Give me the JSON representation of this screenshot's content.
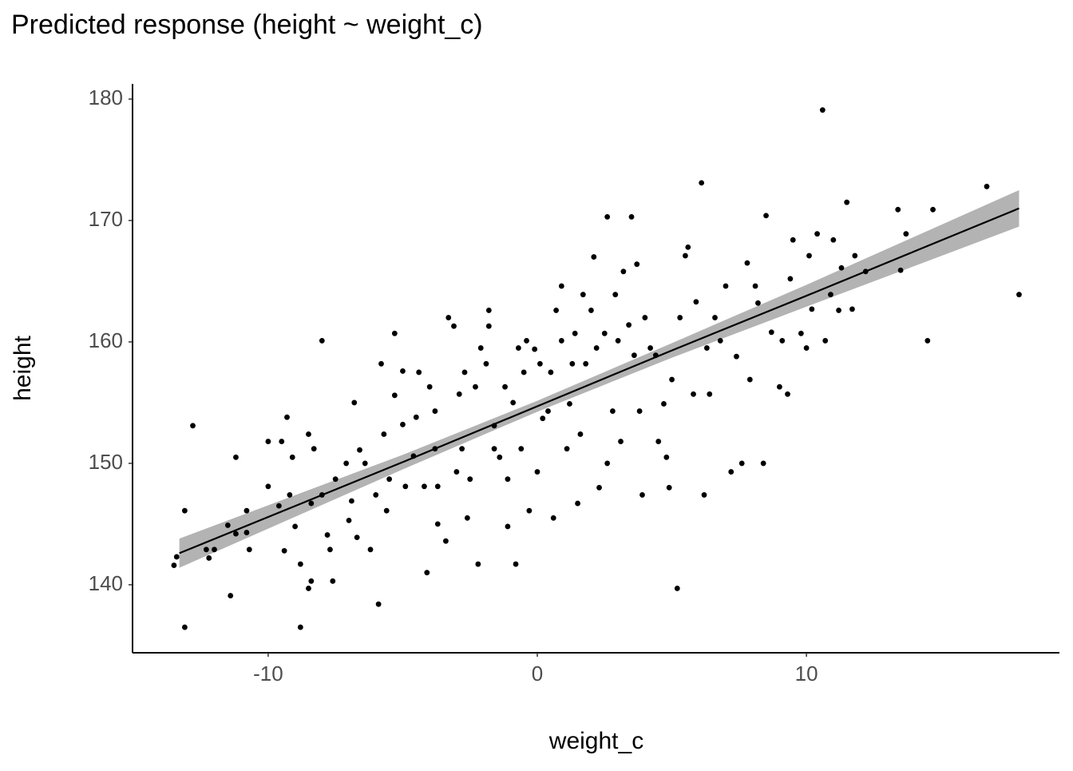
{
  "chart_data": {
    "type": "scatter",
    "title": "Predicted response (height ~ weight_c)",
    "xlabel": "weight_c",
    "ylabel": "height",
    "xlim": [
      -15.04,
      19.4
    ],
    "ylim": [
      134.4,
      181.25
    ],
    "xticks": [
      -10,
      0,
      10
    ],
    "yticks": [
      140,
      150,
      160,
      170,
      180
    ],
    "grid": false,
    "point_color": "#000000",
    "x": [
      -13.5,
      -13.4,
      -13.1,
      -13.1,
      -12.8,
      -12.3,
      -12.2,
      -12.0,
      -11.5,
      -11.4,
      -11.2,
      -11.2,
      -10.8,
      -10.8,
      -10.7,
      -10.0,
      -10.0,
      -9.5,
      -9.3,
      -9.6,
      -9.4,
      -9.2,
      -9.1,
      -9.0,
      -8.8,
      -8.8,
      -8.5,
      -8.5,
      -8.4,
      -8.4,
      -8.3,
      -8.0,
      -8.0,
      -7.8,
      -7.7,
      -7.6,
      -7.5,
      -7.1,
      -7.0,
      -6.9,
      -6.8,
      -6.7,
      -6.6,
      -6.4,
      -6.2,
      -6.0,
      -5.9,
      -5.8,
      -5.7,
      -5.6,
      -5.5,
      -5.3,
      -5.3,
      -5.0,
      -5.0,
      -4.9,
      -4.6,
      -4.5,
      -4.4,
      -4.2,
      -4.1,
      -4.0,
      -3.8,
      -3.8,
      -3.7,
      -3.7,
      -3.4,
      -3.3,
      -3.1,
      -3.0,
      -2.9,
      -2.8,
      -2.7,
      -2.6,
      -2.5,
      -2.3,
      -2.2,
      -2.1,
      -1.9,
      -1.8,
      -1.8,
      -1.6,
      -1.6,
      -1.4,
      -1.2,
      -1.1,
      -1.1,
      -0.9,
      -0.8,
      -0.7,
      -0.6,
      -0.5,
      -0.4,
      -0.3,
      -0.1,
      0.0,
      0.1,
      0.2,
      0.4,
      0.5,
      0.6,
      0.7,
      0.9,
      0.9,
      1.1,
      1.2,
      1.3,
      1.4,
      1.5,
      1.6,
      1.7,
      1.8,
      2.0,
      2.1,
      2.2,
      2.3,
      2.5,
      2.6,
      2.6,
      2.8,
      2.9,
      3.0,
      3.1,
      3.2,
      3.4,
      3.5,
      3.6,
      3.7,
      3.8,
      3.9,
      4.0,
      4.2,
      4.4,
      4.5,
      4.7,
      4.8,
      4.9,
      5.0,
      5.2,
      5.3,
      5.5,
      5.6,
      5.8,
      5.9,
      6.1,
      6.2,
      6.3,
      6.4,
      6.6,
      6.8,
      7.0,
      7.2,
      7.4,
      7.6,
      7.8,
      7.9,
      8.1,
      8.2,
      8.4,
      8.5,
      8.7,
      9.0,
      9.1,
      9.3,
      9.4,
      9.5,
      9.8,
      10.0,
      10.1,
      10.2,
      10.4,
      10.6,
      10.7,
      10.9,
      11.0,
      11.2,
      11.3,
      11.5,
      11.7,
      11.8,
      12.2,
      13.4,
      13.5,
      13.7,
      14.5,
      14.7,
      16.7,
      17.9
    ],
    "y": [
      141.6,
      142.3,
      136.5,
      146.1,
      153.1,
      142.9,
      142.2,
      142.9,
      144.9,
      139.1,
      150.5,
      144.2,
      146.1,
      144.3,
      142.9,
      151.8,
      148.1,
      151.8,
      153.8,
      146.5,
      142.8,
      147.4,
      150.5,
      144.8,
      141.7,
      136.5,
      152.4,
      139.7,
      140.3,
      146.7,
      151.2,
      160.1,
      147.4,
      144.1,
      142.9,
      140.3,
      148.7,
      150.0,
      145.3,
      146.9,
      155.0,
      143.9,
      151.1,
      150.0,
      142.9,
      147.4,
      138.4,
      158.2,
      152.4,
      146.1,
      148.7,
      155.6,
      160.7,
      153.2,
      157.6,
      148.1,
      150.6,
      153.8,
      157.5,
      148.1,
      141.0,
      156.3,
      154.3,
      151.2,
      145.0,
      148.1,
      143.6,
      162.0,
      161.3,
      149.3,
      155.7,
      151.2,
      157.5,
      145.5,
      148.7,
      156.3,
      141.7,
      159.5,
      158.2,
      162.6,
      161.3,
      153.1,
      151.2,
      150.5,
      156.3,
      148.7,
      144.8,
      155.0,
      141.7,
      159.5,
      151.2,
      157.5,
      160.1,
      146.1,
      159.4,
      149.3,
      158.2,
      153.7,
      154.3,
      157.5,
      145.5,
      162.6,
      164.6,
      160.1,
      151.2,
      154.9,
      158.2,
      160.7,
      146.7,
      152.4,
      163.9,
      158.2,
      162.6,
      167.0,
      159.5,
      148.0,
      160.7,
      170.3,
      150.0,
      154.3,
      163.9,
      160.1,
      151.8,
      165.8,
      161.4,
      170.3,
      158.9,
      166.4,
      154.3,
      147.4,
      162.0,
      159.5,
      158.9,
      151.8,
      154.9,
      150.5,
      148.0,
      156.9,
      139.7,
      162.0,
      167.1,
      167.8,
      155.7,
      163.3,
      173.1,
      147.4,
      159.5,
      155.7,
      162.0,
      160.1,
      164.6,
      149.3,
      158.8,
      150.0,
      166.5,
      156.9,
      164.6,
      163.2,
      150.0,
      170.4,
      160.8,
      156.3,
      160.1,
      155.7,
      165.2,
      168.4,
      160.7,
      159.5,
      167.1,
      162.7,
      168.9,
      179.1,
      160.1,
      163.9,
      168.4,
      162.6,
      166.1,
      171.5,
      162.7,
      167.1,
      165.8,
      170.9,
      165.9,
      168.9,
      160.1,
      170.9,
      172.8,
      163.9
    ],
    "fit": {
      "x": [
        -13.3,
        -5,
        0,
        5,
        10,
        17.9
      ],
      "values": [
        142.6,
        150.1,
        154.7,
        159.3,
        163.8,
        171.0
      ],
      "lower": [
        141.4,
        149.5,
        154.25,
        158.7,
        162.9,
        169.5
      ],
      "upper": [
        143.8,
        150.7,
        155.15,
        159.9,
        164.7,
        172.5
      ],
      "color": "#000000",
      "band_color": "#b3b3b3"
    }
  }
}
